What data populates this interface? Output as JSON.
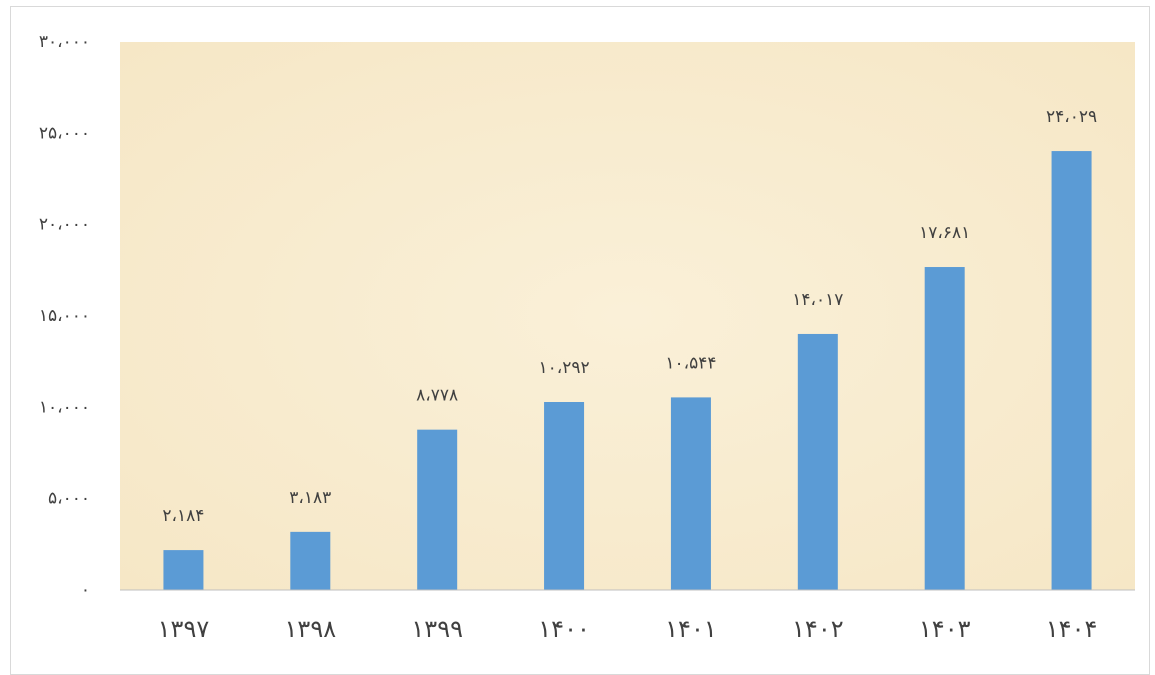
{
  "chart_data": {
    "type": "bar",
    "categories": [
      "۱۳۹۷",
      "۱۳۹۸",
      "۱۳۹۹",
      "۱۴۰۰",
      "۱۴۰۱",
      "۱۴۰۲",
      "۱۴۰۳",
      "۱۴۰۴"
    ],
    "values": [
      2184,
      3183,
      8778,
      10292,
      10544,
      14017,
      17681,
      24029
    ],
    "value_labels": [
      "۲،۱۸۴",
      "۳،۱۸۳",
      "۸،۷۷۸",
      "۱۰،۲۹۲",
      "۱۰،۵۴۴",
      "۱۴،۰۱۷",
      "۱۷،۶۸۱",
      "۲۴،۰۲۹"
    ],
    "color": "#5b9bd5",
    "ylim": [
      0,
      30000
    ],
    "yticks": [
      {
        "value": 0,
        "label": "۰"
      },
      {
        "value": 5000,
        "label": "۵،۰۰۰"
      },
      {
        "value": 10000,
        "label": "۱۰،۰۰۰"
      },
      {
        "value": 15000,
        "label": "۱۵،۰۰۰"
      },
      {
        "value": 20000,
        "label": "۲۰،۰۰۰"
      },
      {
        "value": 25000,
        "label": "۲۵،۰۰۰"
      },
      {
        "value": 30000,
        "label": "۳۰،۰۰۰"
      }
    ],
    "grid": false
  }
}
